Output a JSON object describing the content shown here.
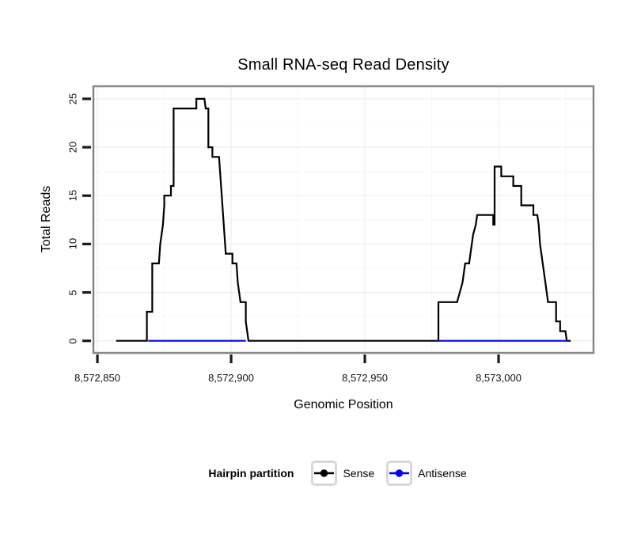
{
  "chart": {
    "title": "Small RNA-seq Read Density",
    "y_axis_title": "Total Reads",
    "x_axis_title": "Genomic Position",
    "legend": {
      "title": "Hairpin partition"
    }
  },
  "chart_data": {
    "type": "line",
    "title": "Small RNA-seq Read Density",
    "xlabel": "Genomic Position",
    "ylabel": "Total Reads",
    "xlim": [
      8572848.5,
      8573035.5
    ],
    "ylim": [
      -1.25,
      26.3
    ],
    "grid": true,
    "legend_title": "Hairpin partition",
    "legend_position": "bottom",
    "x_ticks": [
      8572850,
      8572900,
      8572950,
      8573000
    ],
    "x_tick_labels": [
      "8,572,850",
      "8,572,900",
      "8,572,950",
      "8,573,000"
    ],
    "x_minor_ticks": [
      8572875,
      8572925,
      8572975,
      8573025
    ],
    "y_ticks": [
      0,
      5,
      10,
      15,
      20,
      25
    ],
    "y_tick_labels": [
      "0",
      "5",
      "10",
      "15",
      "20",
      "25"
    ],
    "y_minor_ticks": [
      2.5,
      7.5,
      12.5,
      17.5,
      22.5
    ],
    "series": [
      {
        "name": "Sense",
        "color": "#000000",
        "points": [
          [
            8572857,
            0
          ],
          [
            8572868.5,
            0
          ],
          [
            8572868.5,
            3
          ],
          [
            8572870.5,
            3
          ],
          [
            8572870.5,
            8
          ],
          [
            8572873,
            8
          ],
          [
            8572873.5,
            10
          ],
          [
            8572874.5,
            12
          ],
          [
            8572875,
            14
          ],
          [
            8572875,
            15
          ],
          [
            8572877.5,
            15
          ],
          [
            8572877.5,
            16
          ],
          [
            8572878.5,
            16
          ],
          [
            8572878.5,
            24
          ],
          [
            8572887,
            24
          ],
          [
            8572887,
            25
          ],
          [
            8572890,
            25
          ],
          [
            8572890.5,
            24
          ],
          [
            8572891.5,
            24
          ],
          [
            8572891.5,
            20
          ],
          [
            8572893,
            20
          ],
          [
            8572893,
            19
          ],
          [
            8572895.5,
            19
          ],
          [
            8572896,
            17
          ],
          [
            8572896.5,
            15
          ],
          [
            8572897,
            13
          ],
          [
            8572897.5,
            11
          ],
          [
            8572898,
            9
          ],
          [
            8572900.5,
            9
          ],
          [
            8572900.5,
            8
          ],
          [
            8572902,
            8
          ],
          [
            8572902.5,
            6
          ],
          [
            8572903.5,
            4
          ],
          [
            8572905.5,
            4
          ],
          [
            8572905.5,
            2
          ],
          [
            8572906,
            1
          ],
          [
            8572906.5,
            0
          ],
          [
            8572977.5,
            0
          ],
          [
            8572977.5,
            4
          ],
          [
            8572984.5,
            4
          ],
          [
            8572985.5,
            5
          ],
          [
            8572986.5,
            6
          ],
          [
            8572987,
            7
          ],
          [
            8572987.5,
            8
          ],
          [
            8572989,
            8
          ],
          [
            8572989.5,
            9
          ],
          [
            8572990,
            10
          ],
          [
            8572990.5,
            11
          ],
          [
            8572991.5,
            12
          ],
          [
            8572992,
            13
          ],
          [
            8572998,
            13
          ],
          [
            8572998,
            12
          ],
          [
            8572998.5,
            12
          ],
          [
            8572998.5,
            18
          ],
          [
            8573001,
            18
          ],
          [
            8573001,
            17
          ],
          [
            8573005.5,
            17
          ],
          [
            8573005.5,
            16
          ],
          [
            8573008.5,
            16
          ],
          [
            8573008.5,
            14
          ],
          [
            8573013,
            14
          ],
          [
            8573013,
            13
          ],
          [
            8573014.5,
            13
          ],
          [
            8573015,
            12
          ],
          [
            8573015.5,
            10
          ],
          [
            8573016.5,
            8
          ],
          [
            8573017.5,
            6
          ],
          [
            8573018.5,
            4
          ],
          [
            8573021.5,
            4
          ],
          [
            8573021.5,
            2
          ],
          [
            8573023,
            2
          ],
          [
            8573023,
            1
          ],
          [
            8573025,
            1
          ],
          [
            8573025.5,
            0
          ],
          [
            8573027,
            0
          ]
        ]
      },
      {
        "name": "Antisense",
        "color": "#0000EE",
        "segments": [
          [
            [
              8572869,
              0
            ],
            [
              8572905.5,
              0
            ]
          ],
          [
            [
              8572977.5,
              0
            ],
            [
              8573026,
              0
            ]
          ]
        ]
      }
    ],
    "colors": {
      "panel_border": "#878787",
      "grid_major": "#f0f0f0",
      "grid_minor": "#f7f7f7",
      "tick_mark": "#1a1a1a"
    }
  }
}
